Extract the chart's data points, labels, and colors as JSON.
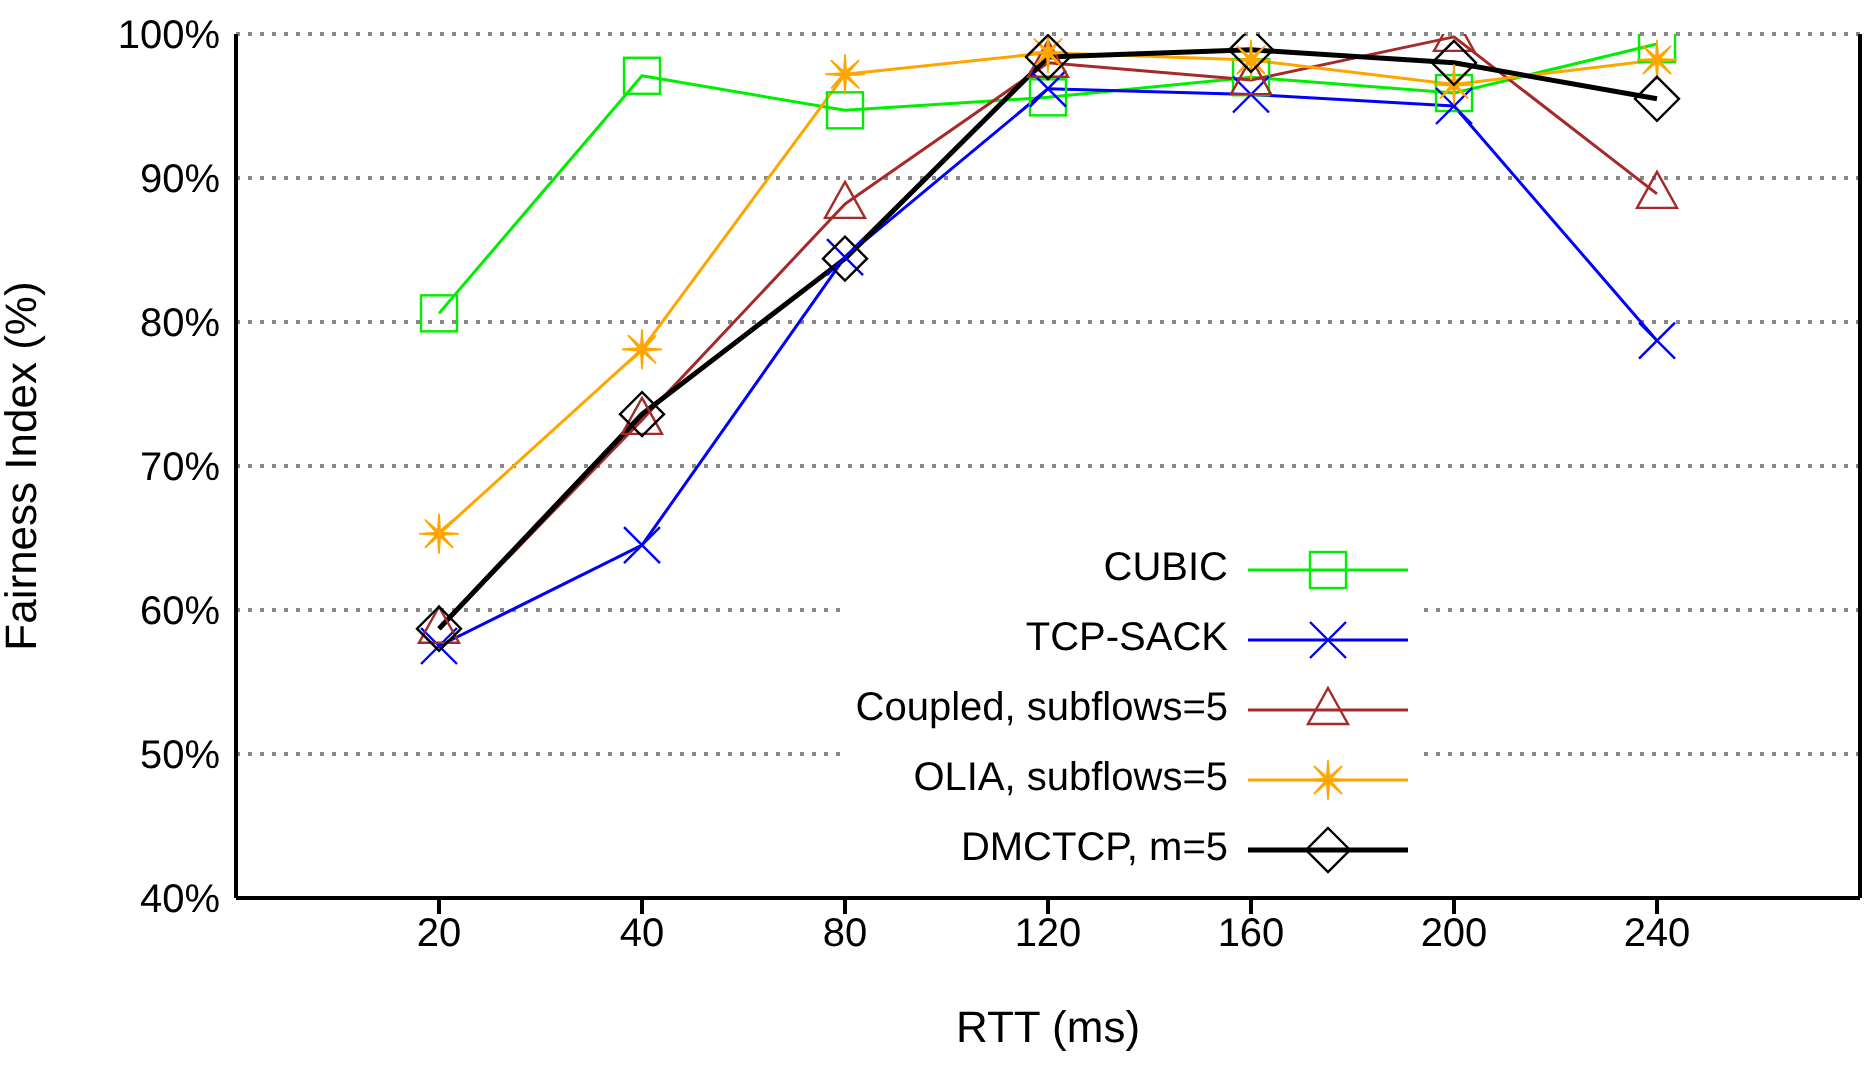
{
  "chart_data": {
    "type": "line",
    "xlabel": "RTT (ms)",
    "ylabel": "Fairness Index (%)",
    "categories": [
      "20",
      "40",
      "80",
      "120",
      "160",
      "200",
      "240"
    ],
    "ylim": [
      40,
      100
    ],
    "yticks": [
      {
        "value": 40,
        "label": "40%"
      },
      {
        "value": 50,
        "label": "50%"
      },
      {
        "value": 60,
        "label": "60%"
      },
      {
        "value": 70,
        "label": "70%"
      },
      {
        "value": 80,
        "label": "80%"
      },
      {
        "value": 90,
        "label": "90%"
      },
      {
        "value": 100,
        "label": "100%"
      }
    ],
    "grid": "y",
    "legend": "bottom right",
    "series": [
      {
        "name": "CUBIC",
        "color": "#00ee00",
        "marker": "square",
        "values": [
          80.6,
          97.1,
          94.7,
          95.6,
          97.0,
          95.9,
          99.3
        ]
      },
      {
        "name": "TCP-SACK",
        "color": "#0000ff",
        "marker": "cross",
        "values": [
          57.5,
          64.5,
          84.5,
          96.2,
          95.8,
          95.0,
          78.7
        ]
      },
      {
        "name": "Coupled, subflows=5",
        "color": "#a52a2a",
        "marker": "triangle",
        "values": [
          58.7,
          73.2,
          88.2,
          98.0,
          96.8,
          99.8,
          88.9
        ]
      },
      {
        "name": "OLIA, subflows=5",
        "color": "#ffa500",
        "marker": "star",
        "values": [
          65.3,
          78.1,
          97.2,
          98.7,
          98.2,
          96.5,
          98.2
        ]
      },
      {
        "name": "DMCTCP, m=5",
        "color": "#000000",
        "marker": "diamond",
        "values": [
          58.7,
          73.6,
          84.4,
          98.4,
          98.9,
          98.0,
          95.5
        ]
      }
    ]
  }
}
